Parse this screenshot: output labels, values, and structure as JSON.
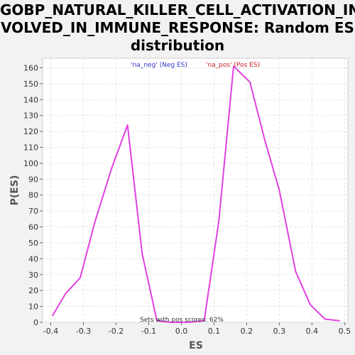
{
  "chart_data": {
    "type": "line",
    "title_lines": [
      "GOBP_NATURAL_KILLER_CELL_ACTIVATION_IN",
      "VOLVED_IN_IMMUNE_RESPONSE: Random ES",
      "distribution"
    ],
    "xlabel": "ES",
    "ylabel": "P(ES)",
    "xlim": [
      -0.425,
      0.51
    ],
    "ylim": [
      0,
      166
    ],
    "x_ticks": [
      "-0.4",
      "-0.3",
      "-0.2",
      "-0.1",
      "0.0",
      "0.1",
      "0.2",
      "0.3",
      "0.4",
      "0.5"
    ],
    "y_ticks": [
      "0",
      "10",
      "20",
      "30",
      "40",
      "50",
      "60",
      "70",
      "80",
      "90",
      "100",
      "110",
      "120",
      "130",
      "140",
      "150",
      "160"
    ],
    "grid": true,
    "series": [
      {
        "color": "#e040e0",
        "x": [
          -0.395,
          -0.355,
          -0.31,
          -0.265,
          -0.215,
          -0.165,
          -0.12,
          -0.075,
          -0.03,
          0.02,
          0.07,
          0.115,
          0.16,
          0.21,
          0.255,
          0.3,
          0.35,
          0.395,
          0.44,
          0.485
        ],
        "y": [
          4,
          18,
          28,
          63,
          96,
          124,
          43,
          1,
          0,
          0,
          1,
          64,
          161,
          151,
          115,
          83,
          32,
          11,
          2,
          1
        ]
      }
    ],
    "legend": [
      {
        "label": "'na_neg' (Neg ES)",
        "color": "#3333cc"
      },
      {
        "label": "'na_pos' (Pos ES)",
        "color": "#cc2222"
      }
    ],
    "legend_position": "top-center",
    "annotation": "Sets with pos scores: 62%"
  }
}
